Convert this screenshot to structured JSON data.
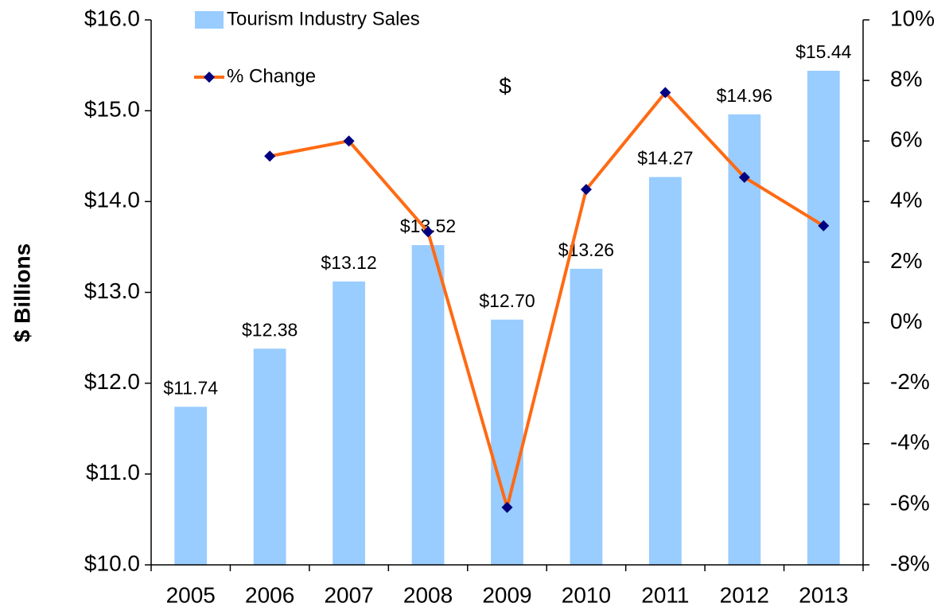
{
  "chart_data": {
    "type": "bar",
    "annotation": "$",
    "ylabel": "$ Billions",
    "categories": [
      "2005",
      "2006",
      "2007",
      "2008",
      "2009",
      "2010",
      "2011",
      "2012",
      "2013"
    ],
    "series": [
      {
        "name": "Tourism Industry Sales",
        "type": "bar",
        "color": "#99ccff",
        "values": [
          11.74,
          12.38,
          13.12,
          13.52,
          12.7,
          13.26,
          14.27,
          14.96,
          15.44
        ],
        "value_labels": [
          "$11.74",
          "$12.38",
          "$13.12",
          "$13.52",
          "$12.70",
          "$13.26",
          "$14.27",
          "$14.96",
          "$15.44"
        ]
      },
      {
        "name": "% Change",
        "type": "line",
        "axis": "y2",
        "color": "#ff6a13",
        "marker_color": "#000080",
        "values": [
          null,
          5.5,
          6.0,
          3.0,
          -6.1,
          4.4,
          7.6,
          4.8,
          3.2
        ]
      }
    ],
    "ylim": [
      10,
      16
    ],
    "yticks": [
      {
        "value": 10,
        "label": "$10.0"
      },
      {
        "value": 11,
        "label": "$11.0"
      },
      {
        "value": 12,
        "label": "$12.0"
      },
      {
        "value": 13,
        "label": "$13.0"
      },
      {
        "value": 14,
        "label": "$14.0"
      },
      {
        "value": 15,
        "label": "$15.0"
      },
      {
        "value": 16,
        "label": "$16.0"
      }
    ],
    "y2lim": [
      -8,
      10
    ],
    "y2ticks": [
      {
        "value": -8,
        "label": "-8%"
      },
      {
        "value": -6,
        "label": "-6%"
      },
      {
        "value": -4,
        "label": "-4%"
      },
      {
        "value": -2,
        "label": "-2%"
      },
      {
        "value": 0,
        "label": "0%"
      },
      {
        "value": 2,
        "label": "2%"
      },
      {
        "value": 4,
        "label": "4%"
      },
      {
        "value": 6,
        "label": "6%"
      },
      {
        "value": 8,
        "label": "8%"
      },
      {
        "value": 10,
        "label": "10%"
      }
    ],
    "grid": false
  }
}
